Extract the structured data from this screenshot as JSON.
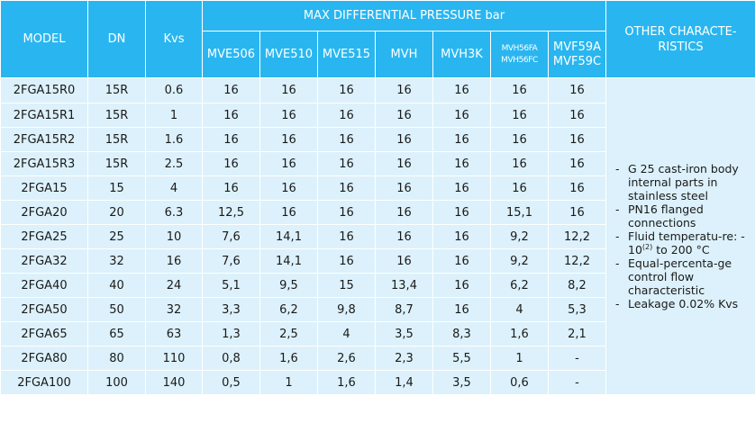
{
  "headers": {
    "model": "MODEL",
    "dn": "DN",
    "kvs": "Kvs",
    "pressure_group": "MAX DIFFERENTIAL PRESSURE bar",
    "other_line1": "OTHER CHARACTE-",
    "other_line2": "RISTICS",
    "columns": [
      {
        "line1": "MVE506",
        "line2": ""
      },
      {
        "line1": "MVE510",
        "line2": ""
      },
      {
        "line1": "MVE515",
        "line2": ""
      },
      {
        "line1": "MVH",
        "line2": ""
      },
      {
        "line1": "MVH3K",
        "line2": ""
      },
      {
        "line1": "MVH56FA",
        "line2": "MVH56FC"
      },
      {
        "line1": "MVF59A",
        "line2": "MVF59C"
      }
    ]
  },
  "rows": [
    {
      "model": "2FGA15R0",
      "dn": "15R",
      "kvs": "0.6",
      "p": [
        "16",
        "16",
        "16",
        "16",
        "16",
        "16",
        "16"
      ]
    },
    {
      "model": "2FGA15R1",
      "dn": "15R",
      "kvs": "1",
      "p": [
        "16",
        "16",
        "16",
        "16",
        "16",
        "16",
        "16"
      ]
    },
    {
      "model": "2FGA15R2",
      "dn": "15R",
      "kvs": "1.6",
      "p": [
        "16",
        "16",
        "16",
        "16",
        "16",
        "16",
        "16"
      ]
    },
    {
      "model": "2FGA15R3",
      "dn": "15R",
      "kvs": "2.5",
      "p": [
        "16",
        "16",
        "16",
        "16",
        "16",
        "16",
        "16"
      ]
    },
    {
      "model": "2FGA15",
      "dn": "15",
      "kvs": "4",
      "p": [
        "16",
        "16",
        "16",
        "16",
        "16",
        "16",
        "16"
      ]
    },
    {
      "model": "2FGA20",
      "dn": "20",
      "kvs": "6.3",
      "p": [
        "12,5",
        "16",
        "16",
        "16",
        "16",
        "15,1",
        "16"
      ]
    },
    {
      "model": "2FGA25",
      "dn": "25",
      "kvs": "10",
      "p": [
        "7,6",
        "14,1",
        "16",
        "16",
        "16",
        "9,2",
        "12,2"
      ]
    },
    {
      "model": "2FGA32",
      "dn": "32",
      "kvs": "16",
      "p": [
        "7,6",
        "14,1",
        "16",
        "16",
        "16",
        "9,2",
        "12,2"
      ]
    },
    {
      "model": "2FGA40",
      "dn": "40",
      "kvs": "24",
      "p": [
        "5,1",
        "9,5",
        "15",
        "13,4",
        "16",
        "6,2",
        "8,2"
      ]
    },
    {
      "model": "2FGA50",
      "dn": "50",
      "kvs": "32",
      "p": [
        "3,3",
        "6,2",
        "9,8",
        "8,7",
        "16",
        "4",
        "5,3"
      ]
    },
    {
      "model": "2FGA65",
      "dn": "65",
      "kvs": "63",
      "p": [
        "1,3",
        "2,5",
        "4",
        "3,5",
        "8,3",
        "1,6",
        "2,1"
      ]
    },
    {
      "model": "2FGA80",
      "dn": "80",
      "kvs": "110",
      "p": [
        "0,8",
        "1,6",
        "2,6",
        "2,3",
        "5,5",
        "1",
        "-"
      ]
    },
    {
      "model": "2FGA100",
      "dn": "100",
      "kvs": "140",
      "p": [
        "0,5",
        "1",
        "1,6",
        "1,4",
        "3,5",
        "0,6",
        "-"
      ]
    }
  ],
  "other_characteristics": [
    {
      "text": "G 25 cast-iron body internal parts in stainless steel"
    },
    {
      "text": "PN16 flanged connections"
    },
    {
      "text": "Fluid temperatu-re: - 10",
      "sup": "(2)",
      "tail": " to 200 °C"
    },
    {
      "text": "Equal-percenta-ge control flow characteristic"
    },
    {
      "text": "Leakage 0.02% Kvs"
    }
  ]
}
